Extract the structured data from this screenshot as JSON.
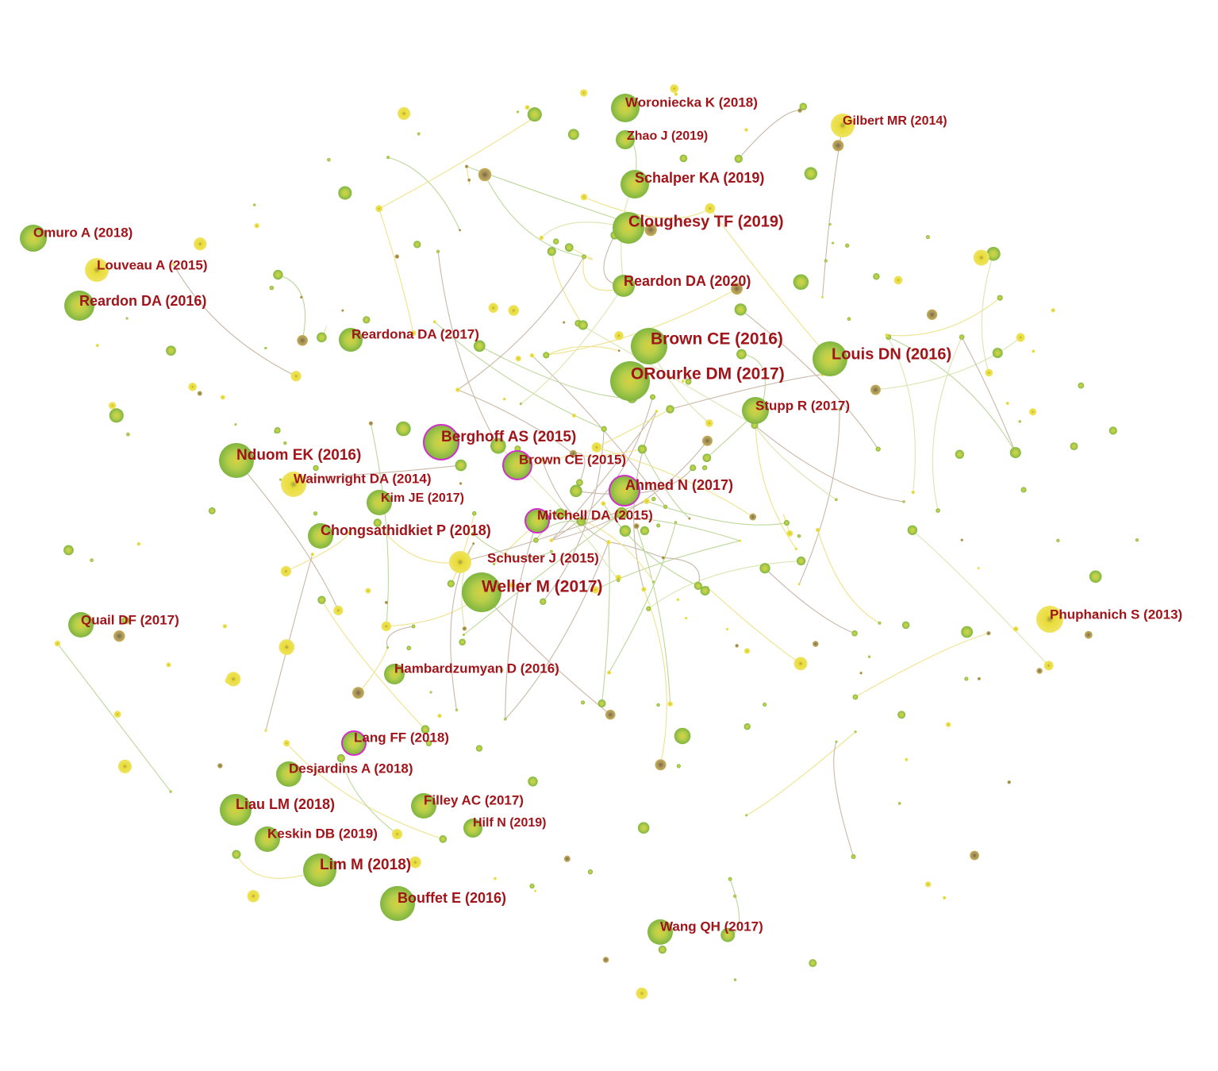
{
  "nodes": [
    {
      "label": "Woroniecka K (2018)"
    },
    {
      "label": "Zhao J (2019)"
    },
    {
      "label": "Gilbert MR (2014)"
    },
    {
      "label": "Schalper KA (2019)"
    },
    {
      "label": "Cloughesy TF (2019)"
    },
    {
      "label": "Omuro A (2018)"
    },
    {
      "label": "Louveau A (2015)"
    },
    {
      "label": "Reardon DA (2016)"
    },
    {
      "label": "Reardon DA (2020)"
    },
    {
      "label": "Reardona DA (2017)"
    },
    {
      "label": "Brown CE (2016)"
    },
    {
      "label": "Louis DN (2016)"
    },
    {
      "label": "ORourke DM (2017)"
    },
    {
      "label": "Stupp R (2017)"
    },
    {
      "label": "Berghoff AS (2015)"
    },
    {
      "label": "Nduom EK (2016)"
    },
    {
      "label": "Brown CE (2015)"
    },
    {
      "label": "Wainwright DA (2014)"
    },
    {
      "label": "Ahmed N (2017)"
    },
    {
      "label": "Kim JE (2017)"
    },
    {
      "label": "Mitchell DA (2015)"
    },
    {
      "label": "Chongsathidkiet P (2018)"
    },
    {
      "label": "Schuster J (2015)"
    },
    {
      "label": "Weller M (2017)"
    },
    {
      "label": "Phuphanich S (2013)"
    },
    {
      "label": "Quail DF (2017)"
    },
    {
      "label": "Hambardzumyan D (2016)"
    },
    {
      "label": "Lang FF (2018)"
    },
    {
      "label": "Desjardins A (2018)"
    },
    {
      "label": "Liau LM (2018)"
    },
    {
      "label": "Filley AC (2017)"
    },
    {
      "label": "Hilf N (2019)"
    },
    {
      "label": "Keskin DB (2019)"
    },
    {
      "label": "Lim M (2018)"
    },
    {
      "label": "Bouffet E (2016)"
    },
    {
      "label": "Wang QH (2017)"
    }
  ]
}
